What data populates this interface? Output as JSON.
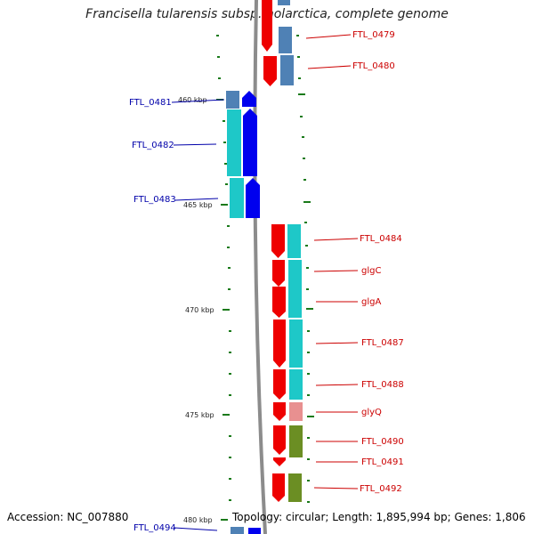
{
  "title": "Francisella tularensis subsp. holarctica, complete genome",
  "accession": "Accession: NC_007880",
  "topology": "Topology: circular; Length: 1,895,994 bp; Genes: 1,806",
  "colors": {
    "backbone": "#8c8c8c",
    "tick": "#1a7a1a",
    "forward_label": "#cc0000",
    "reverse_label": "#0000aa"
  },
  "kbp_labels": [
    "460 kbp",
    "465 kbp",
    "470 kbp",
    "475 kbp",
    "480 kbp"
  ],
  "gene_labels": [
    "FTL_0479",
    "FTL_0480",
    "FTL_0481",
    "FTL_0482",
    "FTL_0483",
    "FTL_0484",
    "glgC",
    "glgA",
    "FTL_0487",
    "FTL_0488",
    "glyQ",
    "FTL_0490",
    "FTL_0491",
    "FTL_0492",
    "FTL_0494"
  ]
}
